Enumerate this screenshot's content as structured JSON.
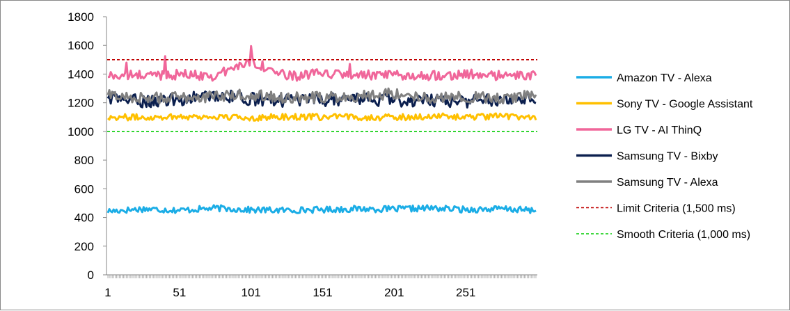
{
  "chart_data": {
    "type": "line",
    "title": "",
    "xlabel": "",
    "ylabel": "",
    "ylim": [
      0,
      1800
    ],
    "y_ticks": [
      0,
      200,
      400,
      600,
      800,
      1000,
      1200,
      1400,
      1600,
      1800
    ],
    "x_tick_labels": [
      "1",
      "51",
      "101",
      "151",
      "201",
      "251"
    ],
    "x_count": 300,
    "grid": false,
    "legend_position": "right",
    "series": [
      {
        "name": "Amazon TV - Alexa",
        "color": "#1BADE6",
        "dash": "solid",
        "base": 450,
        "noise": 22,
        "values_sampled_every_25": [
          437,
          470,
          450,
          480,
          455,
          450,
          460,
          470,
          465,
          480,
          460,
          470,
          445
        ]
      },
      {
        "name": "Sony TV - Google Assistant",
        "color": "#FFC000",
        "dash": "solid",
        "base": 1100,
        "noise": 22,
        "values_sampled_every_25": [
          1100,
          1095,
          1110,
          1100,
          1090,
          1105,
          1100,
          1100,
          1095,
          1110,
          1100,
          1110,
          1100
        ]
      },
      {
        "name": "LG TV - AI ThinQ",
        "color": "#F0669A",
        "dash": "solid",
        "base": 1385,
        "noise": 35,
        "values_sampled_every_25": [
          1390,
          1400,
          1410,
          1390,
          1600,
          1380,
          1420,
          1400,
          1390,
          1400,
          1410,
          1390,
          1390
        ],
        "peaks": [
          {
            "x": 101,
            "y": 1595
          },
          {
            "x": 41,
            "y": 1525
          },
          {
            "x": 14,
            "y": 1480
          },
          {
            "x": 170,
            "y": 1470
          }
        ]
      },
      {
        "name": "Samsung TV - Bixby",
        "color": "#0B1F4E",
        "dash": "solid",
        "base": 1220,
        "noise": 45,
        "values_sampled_every_25": [
          1250,
          1200,
          1220,
          1290,
          1230,
          1210,
          1220,
          1240,
          1210,
          1220,
          1200,
          1230,
          1260
        ]
      },
      {
        "name": "Samsung TV - Alexa",
        "color": "#808080",
        "dash": "solid",
        "base": 1235,
        "noise": 40,
        "values_sampled_every_25": [
          1270,
          1230,
          1240,
          1250,
          1280,
          1230,
          1240,
          1260,
          1300,
          1230,
          1240,
          1230,
          1270
        ]
      },
      {
        "name": "Limit Criteria (1,500 ms)",
        "color": "#C00000",
        "dash": "dashed",
        "constant": 1500
      },
      {
        "name": "Smooth Criteria (1,000 ms)",
        "color": "#00CC00",
        "dash": "dashed",
        "constant": 1000
      }
    ]
  }
}
